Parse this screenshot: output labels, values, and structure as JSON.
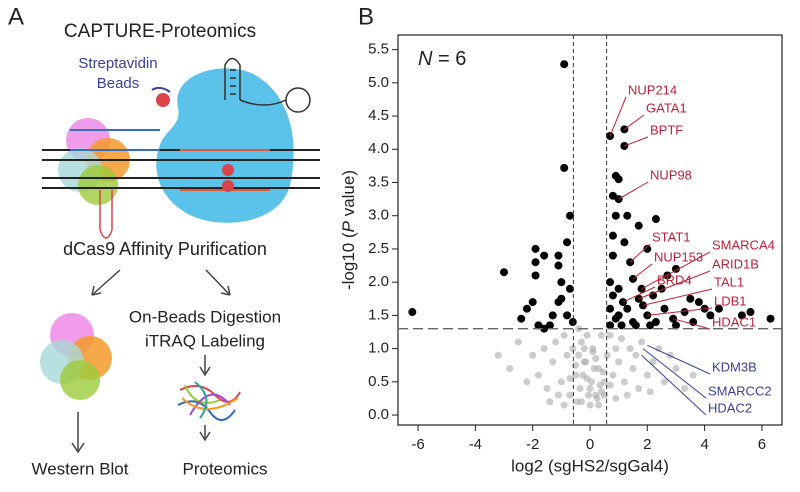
{
  "panel_a": {
    "label": "A",
    "title": "CAPTURE-Proteomics",
    "beads_label": [
      "Streptavidin",
      "Beads"
    ],
    "step": "dCas9 Affinity Purification",
    "branch_right": [
      "On-Beads Digestion",
      "iTRAQ Labeling"
    ],
    "out_left": "Western Blot",
    "out_right": "Proteomics"
  },
  "chart_data": {
    "type": "scatter",
    "panel_label": "B",
    "inset": [
      "N",
      " = 6"
    ],
    "x_label": "log2 (sgHS2/sgGal4)",
    "y_label": [
      "-log10 (",
      "P",
      " value)"
    ],
    "xlim": [
      -6.7,
      6.7
    ],
    "ylim": [
      -0.15,
      5.72
    ],
    "xticks": [
      -6,
      -4,
      -2,
      0,
      2,
      4,
      6
    ],
    "yticks": [
      {
        "value": 0,
        "label": "0.0"
      },
      0.5,
      {
        "value": 1,
        "label": "1.0"
      },
      1.5,
      {
        "value": 2,
        "label": "2.0"
      },
      2.5,
      {
        "value": 3,
        "label": "3.0"
      },
      3.5,
      {
        "value": 4,
        "label": "4.0"
      },
      4.5,
      {
        "value": 5,
        "label": "5.0"
      },
      5.5
    ],
    "thresholds": {
      "x": [
        -0.58,
        0.58
      ],
      "y": 1.3
    },
    "series": [
      {
        "color": "#aaaaaa",
        "x": [
          -3.2,
          -2.8,
          -2.5,
          -2.2,
          -2.0,
          -1.8,
          -1.6,
          -1.5,
          -1.3,
          -1.2,
          -1.0,
          -0.9,
          -0.8,
          -0.7,
          -0.6,
          -0.5,
          -0.4,
          -0.3,
          -0.2,
          -0.1,
          0.0,
          0.1,
          0.2,
          0.3,
          0.4,
          0.5,
          0.6,
          0.7,
          0.8,
          0.9,
          1.0,
          1.1,
          1.2,
          1.4,
          1.5,
          1.6,
          1.8,
          2.0,
          2.2,
          2.4,
          2.6,
          2.8,
          3.0,
          3.3,
          3.6,
          -0.45,
          -0.35,
          -0.25,
          -0.15,
          -0.05,
          0.05,
          0.15,
          0.25,
          0.35,
          0.45,
          -0.4,
          -0.2,
          0.0,
          0.2,
          0.4,
          -0.3,
          -0.1,
          0.1,
          0.3,
          -0.5,
          0.5,
          -1.4,
          -1.1,
          -0.9,
          1.3,
          1.7,
          2.1,
          0.9,
          -0.7,
          0.7
        ],
        "values": [
          0.9,
          0.7,
          1.1,
          0.5,
          0.9,
          0.6,
          1.0,
          0.4,
          0.8,
          1.1,
          0.5,
          1.2,
          0.9,
          0.3,
          1.0,
          0.6,
          1.3,
          0.2,
          0.8,
          1.2,
          0.4,
          1.0,
          0.3,
          0.7,
          1.2,
          0.5,
          0.9,
          1.2,
          0.6,
          1.0,
          0.8,
          1.15,
          0.5,
          1.0,
          0.7,
          0.9,
          1.1,
          0.6,
          0.8,
          1.0,
          0.5,
          0.9,
          0.7,
          0.4,
          0.6,
          0.2,
          0.4,
          0.6,
          0.8,
          0.3,
          0.5,
          0.7,
          0.25,
          0.45,
          0.65,
          0.9,
          1.0,
          0.15,
          0.85,
          0.35,
          1.1,
          0.55,
          0.95,
          0.15,
          0.75,
          0.3,
          0.2,
          0.3,
          0.15,
          0.3,
          0.4,
          0.35,
          0.25,
          0.55,
          0.45
        ]
      },
      {
        "color": "#000000",
        "x": [
          -6.2,
          -3.0,
          -0.9,
          -0.9,
          -2.2,
          -2.4,
          -1.9,
          -1.6,
          -1.1,
          -1.1,
          -1.0,
          -1.0,
          -1.1,
          -1.3,
          -1.4,
          -1.6,
          -1.8,
          -0.7,
          -0.8,
          -0.7,
          -0.8,
          -0.6,
          -1.9,
          -1.9,
          -2.0,
          0.7,
          1.2,
          1.2,
          0.9,
          1.0,
          0.8,
          1.0,
          0.9,
          1.3,
          2.3,
          1.7,
          0.8,
          1.2,
          2.0,
          0.8,
          1.4,
          1.5,
          2.7,
          3.0,
          1.8,
          1.7,
          1.85,
          2.0,
          2.9,
          1.15,
          0.7,
          0.8,
          1.0,
          1.3,
          2.5,
          3.5,
          3.8,
          4.0,
          4.2,
          4.5,
          5.3,
          5.6,
          6.3,
          3.3,
          2.3,
          0.7,
          0.9,
          1.1,
          1.5,
          1.6,
          2.1,
          3.0,
          3.6,
          0.7,
          1.0,
          2.2,
          2.6
        ],
        "values": [
          1.55,
          2.15,
          5.28,
          3.72,
          1.6,
          1.45,
          2.3,
          2.4,
          2.4,
          2.25,
          2.0,
          1.75,
          1.7,
          1.5,
          1.35,
          1.3,
          1.35,
          3.0,
          2.6,
          1.9,
          1.5,
          1.4,
          2.5,
          2.1,
          1.7,
          4.2,
          4.3,
          4.05,
          3.6,
          3.55,
          3.3,
          3.25,
          3.0,
          3.0,
          2.95,
          2.85,
          2.7,
          2.6,
          2.5,
          2.4,
          2.3,
          2.05,
          2.1,
          2.2,
          1.9,
          1.75,
          1.65,
          1.5,
          1.45,
          1.7,
          2.0,
          1.8,
          1.9,
          1.6,
          1.9,
          1.75,
          1.7,
          1.6,
          1.5,
          1.6,
          1.5,
          1.55,
          1.45,
          1.55,
          1.4,
          1.35,
          1.45,
          1.35,
          1.4,
          1.35,
          1.35,
          1.35,
          1.4,
          1.6,
          1.5,
          1.8,
          1.6
        ]
      }
    ],
    "annotations": [
      {
        "text": "NUP214",
        "x": 0.7,
        "y": 4.2,
        "color": "#c0213a"
      },
      {
        "text": "GATA1",
        "x": 1.2,
        "y": 4.3,
        "color": "#c0213a"
      },
      {
        "text": "BPTF",
        "x": 1.2,
        "y": 4.05,
        "color": "#c0213a"
      },
      {
        "text": "NUP98",
        "x": 1.0,
        "y": 3.25,
        "color": "#c0213a"
      },
      {
        "text": "STAT1",
        "x": 1.4,
        "y": 2.3,
        "color": "#c0213a"
      },
      {
        "text": "NUP153",
        "x": 1.5,
        "y": 2.05,
        "color": "#c0213a"
      },
      {
        "text": "BRD4",
        "x": 1.15,
        "y": 1.7,
        "color": "#c0213a"
      },
      {
        "text": "SMARCA4",
        "x": 1.8,
        "y": 1.9,
        "color": "#c0213a"
      },
      {
        "text": "ARID1B",
        "x": 1.7,
        "y": 1.75,
        "color": "#c0213a"
      },
      {
        "text": "TAL1",
        "x": 1.85,
        "y": 1.65,
        "color": "#c0213a"
      },
      {
        "text": "LDB1",
        "x": 2.0,
        "y": 1.5,
        "color": "#c0213a"
      },
      {
        "text": "HDAC1",
        "x": 2.9,
        "y": 1.45,
        "color": "#c0213a"
      },
      {
        "text": "KDM3B",
        "x": 2.0,
        "y": 1.05,
        "color": "#3a3f9a"
      },
      {
        "text": "SMARCC2",
        "x": 1.85,
        "y": 1.0,
        "color": "#3a3f9a"
      },
      {
        "text": "HDAC2",
        "x": 1.8,
        "y": 0.9,
        "color": "#3a3f9a"
      }
    ]
  }
}
